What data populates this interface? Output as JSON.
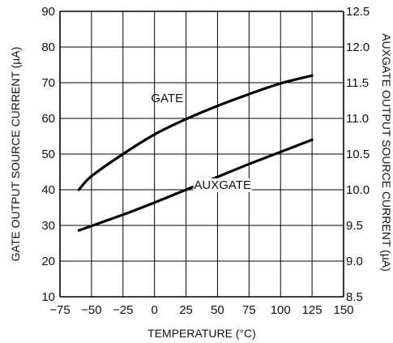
{
  "chart_data": {
    "type": "line",
    "title": "",
    "xlabel": "TEMPERATURE (°C)",
    "ylabel_left": "GATE OUTPUT SOURCE CURRENT (µA)",
    "ylabel_right": "AUXGATE OUTPUT SOURCE CURRENT (µA)",
    "xlim": [
      -75,
      150
    ],
    "ylim_left": [
      10,
      90
    ],
    "ylim_right": [
      8.5,
      12.5
    ],
    "grid": true,
    "x_ticks": [
      "−75",
      "−50",
      "−25",
      "0",
      "25",
      "50",
      "75",
      "100",
      "125",
      "150"
    ],
    "y_left_ticks": [
      "10",
      "20",
      "30",
      "40",
      "50",
      "60",
      "70",
      "80",
      "90"
    ],
    "y_right_ticks": [
      "8.5",
      "9.0",
      "9.5",
      "10.0",
      "10.5",
      "11.0",
      "11.5",
      "12.0",
      "12.5"
    ],
    "series": [
      {
        "name": "GATE",
        "axis": "left",
        "x": [
          -60,
          -50,
          -25,
          0,
          25,
          50,
          75,
          100,
          125
        ],
        "y": [
          40,
          43.8,
          50,
          55.5,
          59.8,
          63.5,
          66.8,
          69.8,
          72
        ]
      },
      {
        "name": "AUXGATE",
        "axis": "right",
        "x": [
          -60,
          -25,
          0,
          25,
          50,
          75,
          100,
          125
        ],
        "y": [
          9.43,
          9.65,
          9.82,
          10.0,
          10.18,
          10.36,
          10.53,
          10.7
        ]
      }
    ]
  }
}
